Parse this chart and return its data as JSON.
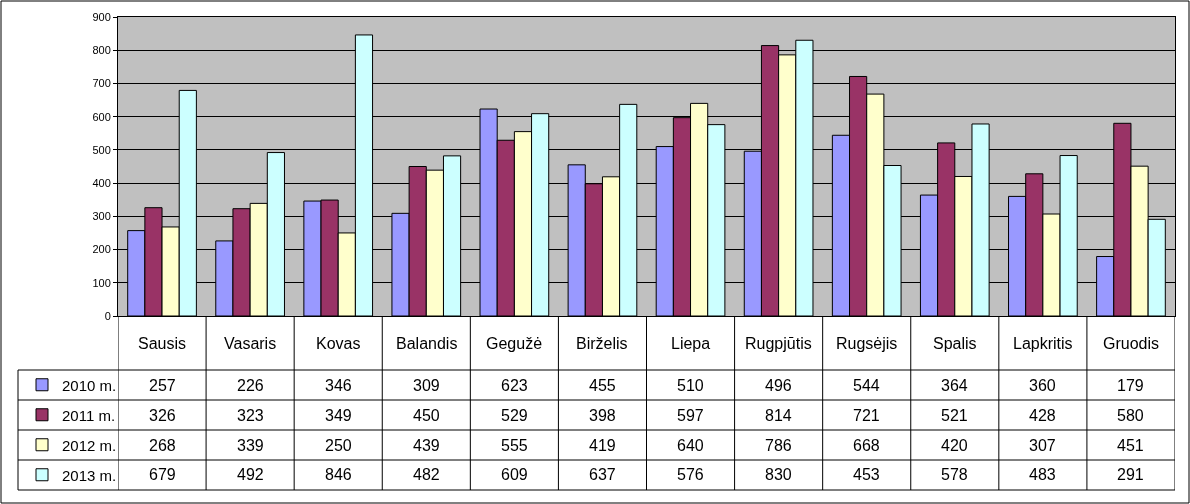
{
  "chart_data": {
    "type": "bar",
    "categories": [
      "Sausis",
      "Vasaris",
      "Kovas",
      "Balandis",
      "Gegužė",
      "Birželis",
      "Liepa",
      "Rugpjūtis",
      "Rugsėjis",
      "Spalis",
      "Lapkritis",
      "Gruodis"
    ],
    "series": [
      {
        "name": "2010 m.",
        "color": "#9999ff",
        "values": [
          257,
          226,
          346,
          309,
          623,
          455,
          510,
          496,
          544,
          364,
          360,
          179
        ]
      },
      {
        "name": "2011 m.",
        "color": "#993366",
        "values": [
          326,
          323,
          349,
          450,
          529,
          398,
          597,
          814,
          721,
          521,
          428,
          580
        ]
      },
      {
        "name": "2012 m.",
        "color": "#ffffcc",
        "values": [
          268,
          339,
          250,
          439,
          555,
          419,
          640,
          786,
          668,
          420,
          307,
          451
        ]
      },
      {
        "name": "2013 m.",
        "color": "#ccffff",
        "values": [
          679,
          492,
          846,
          482,
          609,
          637,
          576,
          830,
          453,
          578,
          483,
          291
        ]
      }
    ],
    "ylim": [
      0,
      900
    ],
    "yticks": [
      0,
      100,
      200,
      300,
      400,
      500,
      600,
      700,
      800,
      900
    ],
    "grid": "y",
    "legend": "bottom left",
    "data_labels": true
  }
}
